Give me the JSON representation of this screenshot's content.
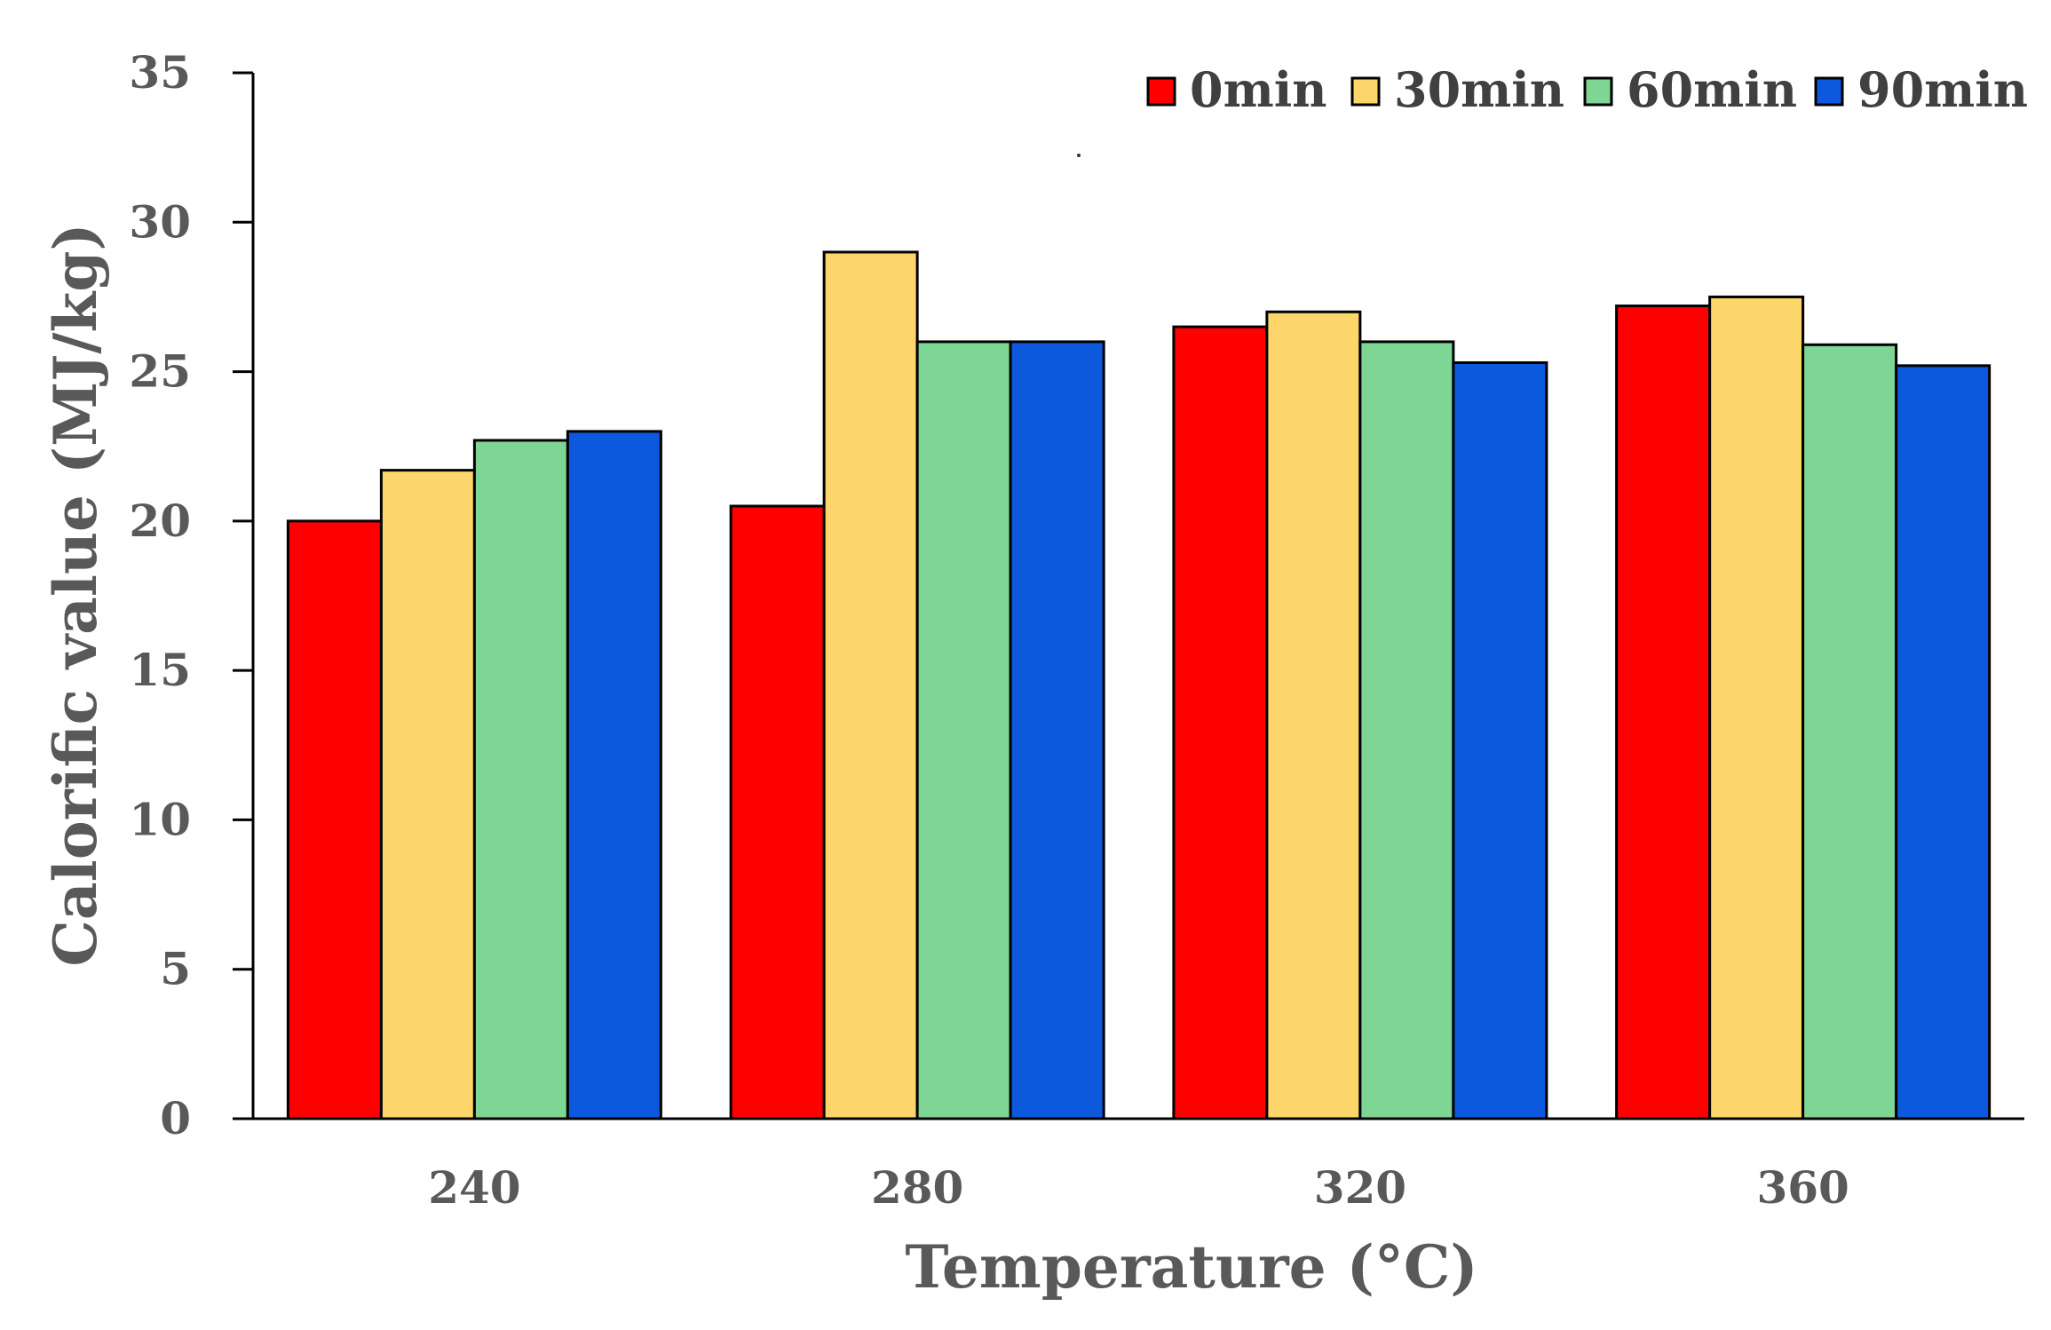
{
  "chart_data": {
    "type": "bar",
    "title": "",
    "xlabel": "Temperature (°C)",
    "ylabel": "Calorific value (MJ/kg)",
    "categories": [
      "240",
      "280",
      "320",
      "360"
    ],
    "ylim": [
      0,
      35
    ],
    "yticks": [
      0,
      5,
      10,
      15,
      20,
      25,
      30,
      35
    ],
    "legend_position": "top-right",
    "grid": false,
    "series": [
      {
        "name": "0min",
        "color": "#ff0000",
        "values": [
          20.0,
          20.5,
          26.5,
          27.2
        ]
      },
      {
        "name": "30min",
        "color": "#fcd56b",
        "values": [
          21.7,
          29.0,
          27.0,
          27.5
        ]
      },
      {
        "name": "60min",
        "color": "#7dd693",
        "values": [
          22.7,
          26.0,
          26.0,
          25.9
        ]
      },
      {
        "name": "90min",
        "color": "#0c59de",
        "values": [
          23.0,
          26.0,
          25.3,
          25.2
        ]
      }
    ]
  }
}
